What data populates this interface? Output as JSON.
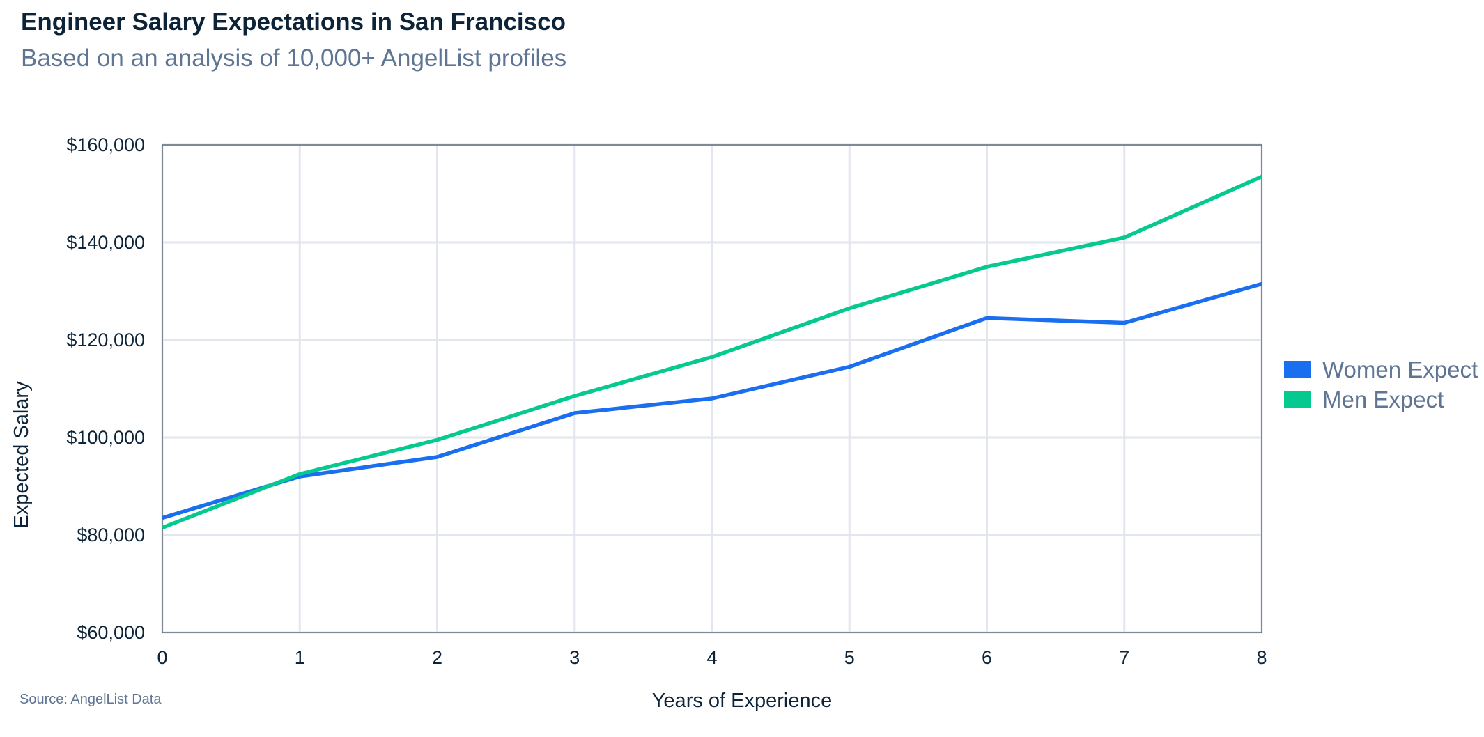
{
  "chart_data": {
    "type": "line",
    "title": "Engineer Salary Expectations in San Francisco",
    "subtitle": "Based on an analysis of 10,000+ AngelList profiles",
    "source": "Source: AngelList Data",
    "xlabel": "Years of Experience",
    "ylabel": "Expected Salary",
    "x": [
      0,
      1,
      2,
      3,
      4,
      5,
      6,
      7,
      8
    ],
    "x_tick_labels": [
      "0",
      "1",
      "2",
      "3",
      "4",
      "5",
      "6",
      "7",
      "8"
    ],
    "y_ticks": [
      60000,
      80000,
      100000,
      120000,
      140000,
      160000
    ],
    "y_tick_labels": [
      "$60,000",
      "$80,000",
      "$100,000",
      "$120,000",
      "$140,000",
      "$160,000"
    ],
    "xlim": [
      0,
      8
    ],
    "ylim": [
      60000,
      160000
    ],
    "grid": true,
    "legend_position": "right",
    "series": [
      {
        "name": "Women Expect",
        "color": "#1a6ef0",
        "values": [
          83500,
          92000,
          96000,
          105000,
          108000,
          114500,
          124500,
          123500,
          131500
        ]
      },
      {
        "name": "Men Expect",
        "color": "#05c98f",
        "values": [
          81500,
          92500,
          99500,
          108500,
          116500,
          126500,
          135000,
          141000,
          153500
        ]
      }
    ]
  }
}
